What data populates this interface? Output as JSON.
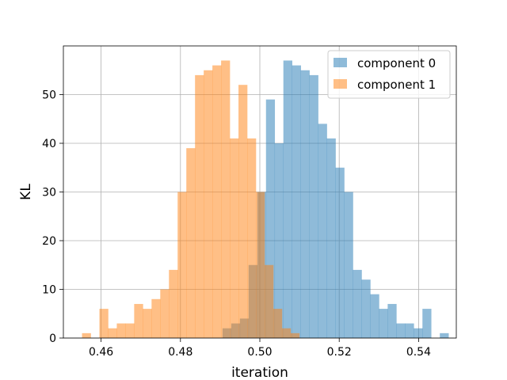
{
  "chart_data": {
    "type": "histogram",
    "xlabel": "iteration",
    "ylabel": "KL",
    "xlim": [
      0.4505,
      0.5495
    ],
    "ylim": [
      0,
      60
    ],
    "xticks": [
      0.46,
      0.48,
      0.5,
      0.52,
      0.54
    ],
    "xtick_labels": [
      "0.46",
      "0.48",
      "0.50",
      "0.52",
      "0.54"
    ],
    "yticks": [
      0,
      10,
      20,
      30,
      40,
      50
    ],
    "ytick_labels": [
      "0",
      "10",
      "20",
      "30",
      "40",
      "50"
    ],
    "grid": true,
    "legend_position": "upper right",
    "series": [
      {
        "name": "component 0",
        "color": "#1f77b4",
        "alpha": 0.5,
        "bin_start": 0.4906,
        "bin_width": 0.00219,
        "counts": [
          2,
          3,
          4,
          15,
          30,
          49,
          40,
          57,
          56,
          55,
          54,
          44,
          41,
          35,
          30,
          14,
          12,
          9,
          6,
          7,
          3,
          3,
          2,
          6,
          0,
          1
        ]
      },
      {
        "name": "component 1",
        "color": "#ff7f0e",
        "alpha": 0.5,
        "bin_start": 0.4552,
        "bin_width": 0.00219,
        "counts": [
          1,
          0,
          6,
          2,
          3,
          3,
          7,
          6,
          8,
          10,
          14,
          30,
          39,
          54,
          55,
          56,
          57,
          41,
          52,
          41,
          30,
          15,
          6,
          2,
          1
        ]
      }
    ]
  }
}
